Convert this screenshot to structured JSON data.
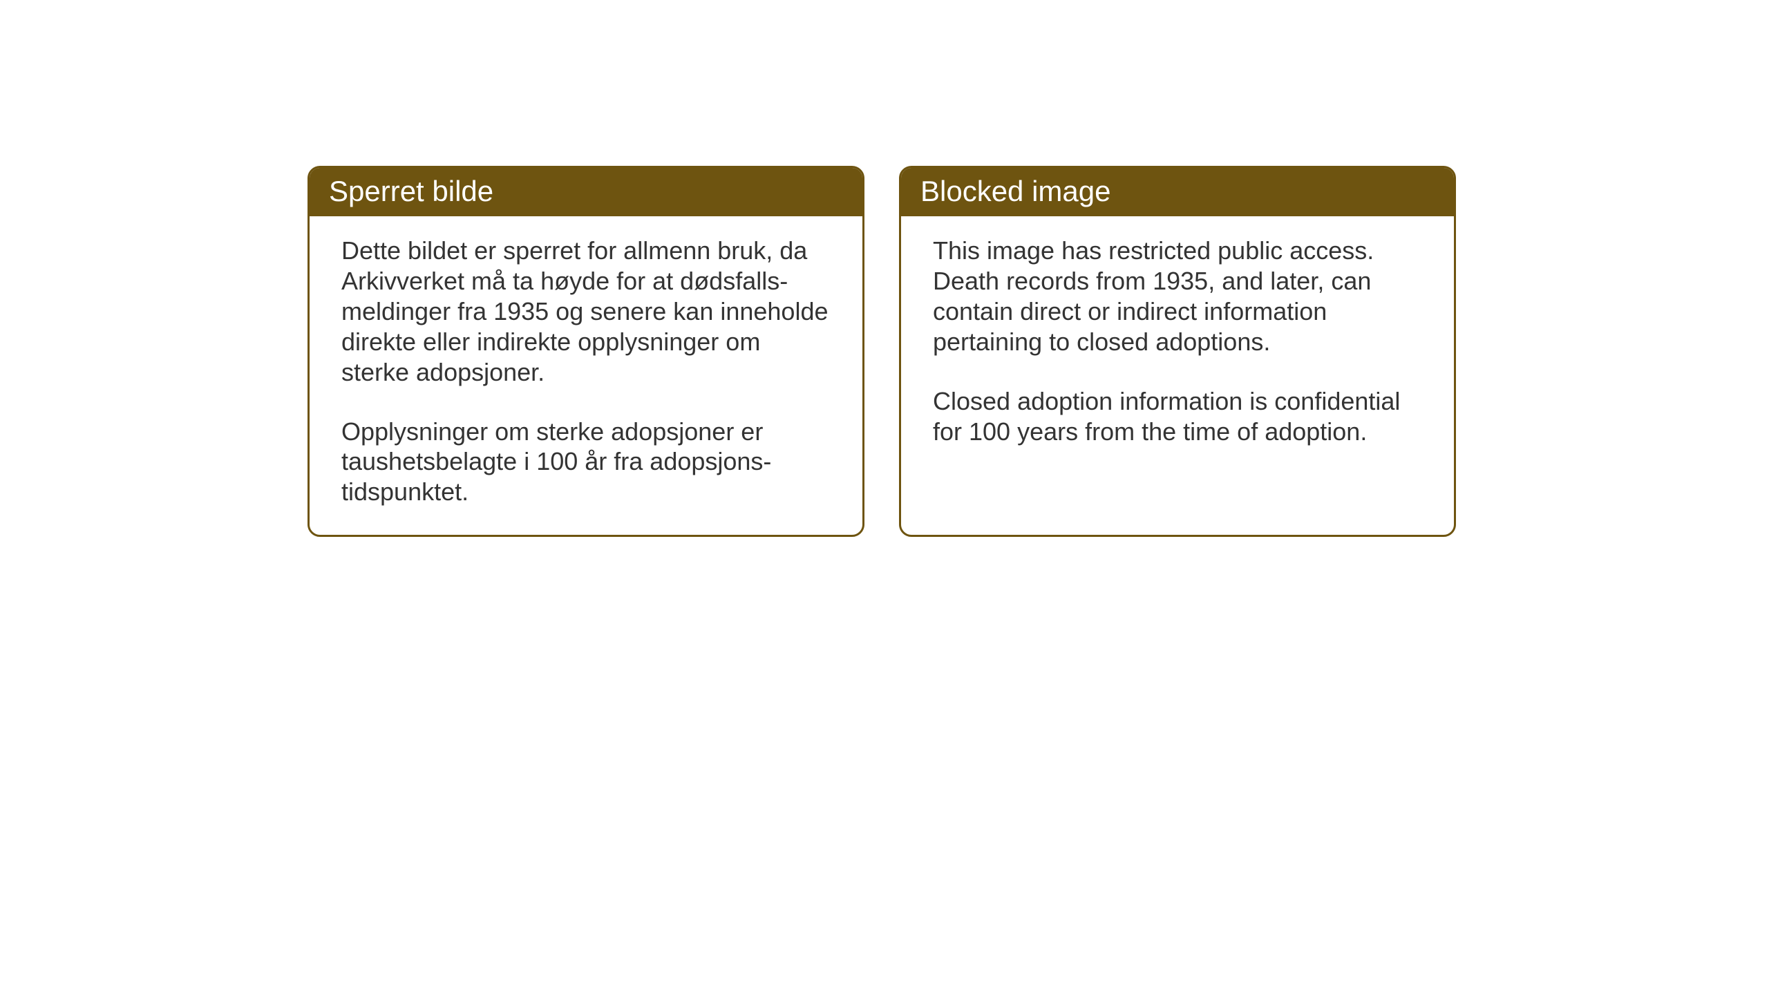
{
  "cards": [
    {
      "title": "Sperret bilde",
      "paragraph1": "Dette bildet er sperret for allmenn bruk, da Arkivverket må ta høyde for at dødsfalls-meldinger fra 1935 og senere kan inneholde direkte eller indirekte opplysninger om sterke adopsjoner.",
      "paragraph2": "Opplysninger om sterke adopsjoner er taushetsbelagte i 100 år fra adopsjons-tidspunktet."
    },
    {
      "title": "Blocked image",
      "paragraph1": "This image has restricted public access. Death records from 1935, and later, can contain direct or indirect information pertaining to closed adoptions.",
      "paragraph2": "Closed adoption information is confidential for 100 years from the time of adoption."
    }
  ],
  "styling": {
    "header_bg_color": "#6e5410",
    "header_text_color": "#ffffff",
    "border_color": "#6e5410",
    "body_bg_color": "#ffffff",
    "body_text_color": "#333333",
    "page_bg_color": "#ffffff",
    "header_fontsize": 42,
    "body_fontsize": 36,
    "border_radius": 18,
    "border_width": 3
  }
}
